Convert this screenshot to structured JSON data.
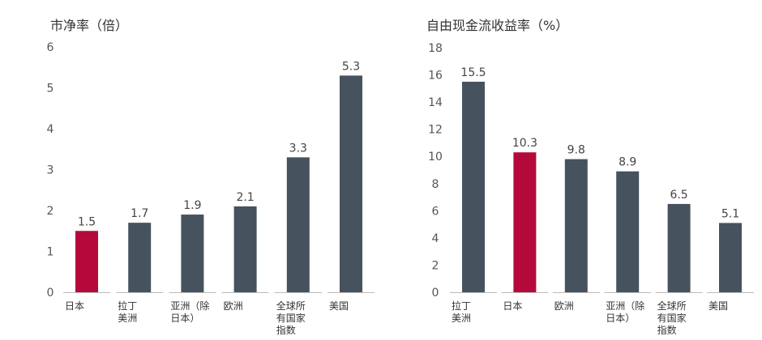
{
  "chart_data": [
    {
      "type": "bar",
      "title": "市净率（倍）",
      "categories": [
        [
          "日本"
        ],
        [
          "拉丁",
          "美洲"
        ],
        [
          "亚洲（除",
          "日本）"
        ],
        [
          "欧洲"
        ],
        [
          "全球所",
          "有国家",
          "指数"
        ],
        [
          "美国"
        ]
      ],
      "values": [
        1.5,
        1.7,
        1.9,
        2.1,
        3.3,
        5.3
      ],
      "data_labels": [
        "1.5",
        "1.7",
        "1.9",
        "2.1",
        "3.3",
        "5.3"
      ],
      "highlight_index": 0,
      "yticks": [
        "0",
        "1",
        "2",
        "3",
        "4",
        "5",
        "6"
      ],
      "ylim": [
        0,
        6
      ],
      "xlabel": "",
      "ylabel": "",
      "grid": false
    },
    {
      "type": "bar",
      "title": "自由现金流收益率（%）",
      "categories": [
        [
          "拉丁",
          "美洲"
        ],
        [
          "日本"
        ],
        [
          "欧洲"
        ],
        [
          "亚洲（除",
          "日本）"
        ],
        [
          "全球所",
          "有国家",
          "指数"
        ],
        [
          "美国"
        ]
      ],
      "values": [
        15.5,
        10.3,
        9.8,
        8.9,
        6.5,
        5.1
      ],
      "data_labels": [
        "15.5",
        "10.3",
        "9.8",
        "8.9",
        "6.5",
        "5.1"
      ],
      "highlight_index": 1,
      "yticks": [
        "0",
        "2",
        "4",
        "6",
        "8",
        "10",
        "12",
        "14",
        "16",
        "18"
      ],
      "ylim": [
        0,
        18
      ],
      "xlabel": "",
      "ylabel": "",
      "grid": false
    }
  ],
  "colors": {
    "bar": "#46535e",
    "highlight": "#b5093b",
    "axis": "#bbbbbb"
  }
}
